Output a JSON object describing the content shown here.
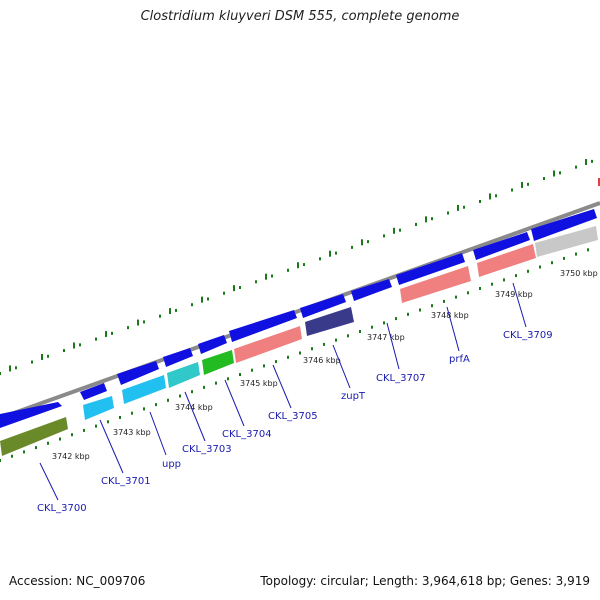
{
  "title": "Clostridium kluyveri DSM 555, complete genome",
  "footer": {
    "accession": "Accession: NC_009706",
    "summary": "Topology: circular; Length: 3,964,618 bp; Genes: 3,919"
  },
  "colors": {
    "backbone": "#8a8a8a",
    "forward_strand": "#1010e0",
    "cyan_feature": "#22c0f0",
    "teal_feature": "#30c8c8",
    "green_feature": "#22bb22",
    "pink_feature": "#f08080",
    "purple_feature": "#3a3a8a",
    "olive_feature": "#6a8a2a",
    "gray_feature": "#c8c8c8",
    "tick_color": "#1a7a1a",
    "label_color": "#1a1ab0"
  },
  "kbp_labels": [
    "3742 kbp",
    "3743 kbp",
    "3744 kbp",
    "3745 kbp",
    "3746 kbp",
    "3747 kbp",
    "3748 kbp",
    "3749 kbp",
    "3750 kbp"
  ],
  "gene_labels": [
    "CKL_3700",
    "CKL_3701",
    "upp",
    "CKL_3703",
    "CKL_3704",
    "CKL_3705",
    "zupT",
    "CKL_3707",
    "prfA",
    "CKL_3709"
  ]
}
